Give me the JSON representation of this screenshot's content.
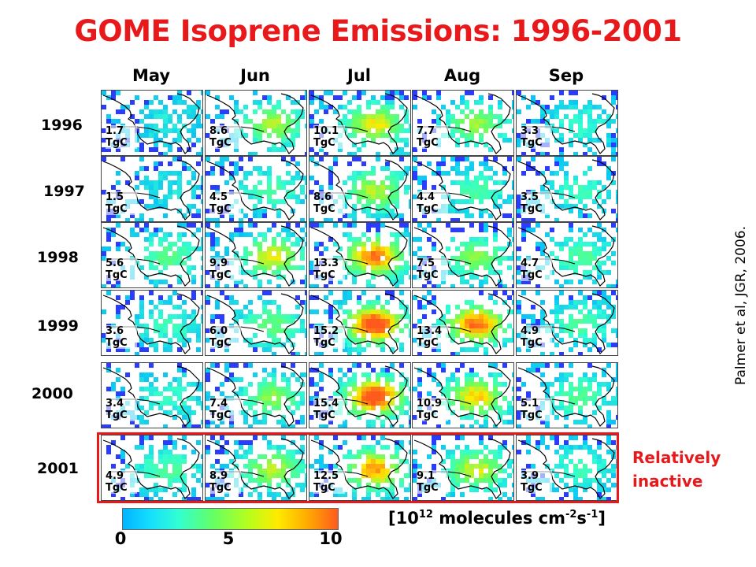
{
  "title": "GOME Isoprene Emissions: 1996-2001",
  "months": [
    "May",
    "Jun",
    "Jul",
    "Aug",
    "Sep"
  ],
  "rows": [
    {
      "year": "1996",
      "totals": [
        "1.7",
        "8.6",
        "10.1",
        "7.7",
        "3.3"
      ],
      "unit": "TgC"
    },
    {
      "year": "1997",
      "totals": [
        "1.5",
        "4.5",
        "8.6",
        "4.4",
        "3.5"
      ],
      "unit": "TgC"
    },
    {
      "year": "1998",
      "totals": [
        "5.6",
        "9.9",
        "13.3",
        "7.5",
        "4.7"
      ],
      "unit": "TgC"
    },
    {
      "year": "1999",
      "totals": [
        "3.6",
        "6.0",
        "15.2",
        "13.4",
        "4.9"
      ],
      "unit": "TgC"
    },
    {
      "year": "2000",
      "totals": [
        "3.4",
        "7.4",
        "15.4",
        "10.9",
        "5.1"
      ],
      "unit": "TgC"
    },
    {
      "year": "2001",
      "totals": [
        "4.9",
        "8.9",
        "12.5",
        "9.1",
        "3.9"
      ],
      "unit": "TgC"
    }
  ],
  "highlight": {
    "year": "2001",
    "color": "#e8191b",
    "label_line1": "Relatively",
    "label_line2": "inactive"
  },
  "citation": "Palmer et al, JGR, 2006.",
  "colorbar": {
    "ticks": [
      "0",
      "5",
      "10"
    ],
    "min": 0,
    "max": 10,
    "colors": [
      "#00b4ff",
      "#32ffd2",
      "#64ff64",
      "#ffeb00",
      "#ff5a1e"
    ],
    "units_prefix": "[10",
    "units_exp1": "12",
    "units_mid": " molecules cm",
    "units_exp2": "-2",
    "units_s": "s",
    "units_exp3": "-1",
    "units_suffix": "]"
  },
  "title_color": "#e8191b"
}
